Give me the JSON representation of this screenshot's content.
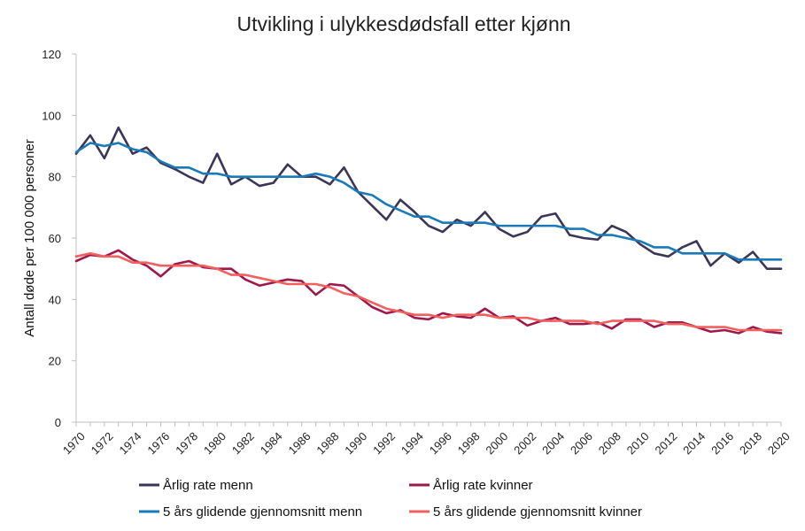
{
  "chart_data": {
    "type": "line",
    "title": "Utvikling i ulykkesdødsfall etter kjønn",
    "xlabel": "",
    "ylabel": "Antall døde per 100 000 personer",
    "ylim": [
      0,
      120
    ],
    "yticks": [
      0,
      20,
      40,
      60,
      80,
      100,
      120
    ],
    "xlim": [
      1970,
      2020
    ],
    "xticks": [
      1970,
      1972,
      1974,
      1976,
      1978,
      1980,
      1982,
      1984,
      1986,
      1988,
      1990,
      1992,
      1994,
      1996,
      1998,
      2000,
      2002,
      2004,
      2006,
      2008,
      2010,
      2012,
      2014,
      2016,
      2018,
      2020
    ],
    "grid": false,
    "legend": "bottom",
    "x": [
      1970,
      1971,
      1972,
      1973,
      1974,
      1975,
      1976,
      1977,
      1978,
      1979,
      1980,
      1981,
      1982,
      1983,
      1984,
      1985,
      1986,
      1987,
      1988,
      1989,
      1990,
      1991,
      1992,
      1993,
      1994,
      1995,
      1996,
      1997,
      1998,
      1999,
      2000,
      2001,
      2002,
      2003,
      2004,
      2005,
      2006,
      2007,
      2008,
      2009,
      2010,
      2011,
      2012,
      2013,
      2014,
      2015,
      2016,
      2017,
      2018,
      2019,
      2020
    ],
    "series": [
      {
        "name": "Årlig rate menn",
        "color": "#3b3558",
        "values": [
          87.5,
          93.5,
          86,
          96,
          87.5,
          89.5,
          84.5,
          82.5,
          80,
          78,
          87.5,
          77.5,
          80,
          77,
          78,
          84,
          80,
          80,
          77.5,
          83,
          75,
          70.5,
          66,
          72.5,
          68.5,
          64,
          62,
          66,
          64,
          68.5,
          63,
          60.5,
          62,
          67,
          68,
          61,
          60,
          59.5,
          64,
          62,
          58,
          55,
          54,
          57,
          59,
          51,
          55,
          52,
          55.5,
          50,
          50
        ]
      },
      {
        "name": "Årlig rate kvinner",
        "color": "#a0174a",
        "values": [
          52.5,
          54.5,
          54,
          56,
          53,
          51,
          47.5,
          51.5,
          52.5,
          50.5,
          50,
          50,
          46.5,
          44.5,
          45.5,
          46.5,
          46,
          41.5,
          45,
          44.5,
          41,
          37.5,
          35.5,
          36.5,
          34,
          33.5,
          35.5,
          34.5,
          34,
          37,
          34,
          34.5,
          31.5,
          33,
          34,
          32,
          32,
          32.5,
          30.5,
          33.5,
          33.5,
          31,
          32.5,
          32.5,
          31,
          29.5,
          30,
          29,
          31,
          29.5,
          29
        ]
      },
      {
        "name": "5 års glidende gjennomsnitt menn",
        "color": "#1a7ab8",
        "values": [
          88,
          91,
          90,
          91,
          89,
          88,
          85,
          83,
          83,
          81,
          81,
          80,
          80,
          80,
          80,
          80,
          80,
          81,
          80,
          78,
          75,
          74,
          71,
          69,
          67,
          67,
          65,
          65,
          65,
          65,
          64,
          64,
          64,
          64,
          64,
          63,
          63,
          61,
          61,
          60,
          59,
          57,
          57,
          55,
          55,
          55,
          55,
          53,
          53,
          53,
          53
        ]
      },
      {
        "name": "5 års glidende gjennomsnitt kvinner",
        "color": "#f0605e",
        "values": [
          54,
          55,
          54,
          54,
          52,
          52,
          51,
          51,
          51,
          51,
          50,
          48,
          48,
          47,
          46,
          45,
          45,
          45,
          44,
          42,
          41,
          39,
          37,
          36,
          35,
          35,
          34,
          35,
          35,
          35,
          34,
          34,
          34,
          33,
          33,
          33,
          33,
          32,
          33,
          33,
          33,
          33,
          32,
          32,
          31,
          31,
          31,
          30,
          30,
          30,
          30
        ]
      }
    ]
  }
}
